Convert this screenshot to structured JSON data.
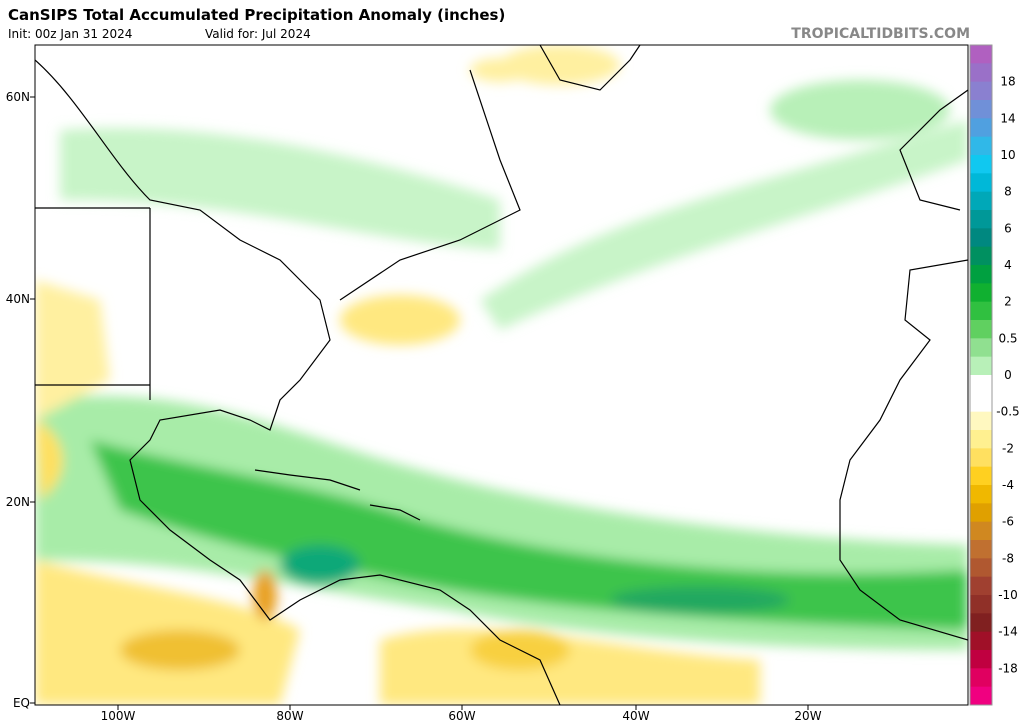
{
  "header": {
    "title": "CanSIPS Total Accumulated Precipitation Anomaly (inches)",
    "init": "Init: 00z Jan 31 2024",
    "valid": "Valid for: Jul 2024",
    "site": "TROPICALTIDBITS.COM"
  },
  "map": {
    "lat_labels": [
      "60N",
      "40N",
      "20N",
      "EQ"
    ],
    "lon_labels": [
      "100W",
      "80W",
      "60W",
      "40W",
      "20W"
    ]
  },
  "colorbar": {
    "labels": [
      "18",
      "14",
      "10",
      "8",
      "6",
      "4",
      "2",
      "0.5",
      "0",
      "-0.5",
      "-2",
      "-4",
      "-6",
      "-8",
      "-10",
      "-14",
      "-18"
    ],
    "colors": [
      "#b060c0",
      "#9a70c8",
      "#8a80d0",
      "#7090d8",
      "#50a0e0",
      "#30b8e8",
      "#10c8f0",
      "#00b8d8",
      "#00a8b8",
      "#009898",
      "#008880",
      "#009060",
      "#00a040",
      "#10b030",
      "#30c040",
      "#60d060",
      "#90e090",
      "#b8f0b8",
      "#ffffff",
      "#ffffff",
      "#fff8c0",
      "#fff090",
      "#ffe060",
      "#ffd020",
      "#f0b800",
      "#e0a000",
      "#d08820",
      "#c07030",
      "#b05830",
      "#a04030",
      "#903028",
      "#802020",
      "#a01028",
      "#c00040",
      "#e00060",
      "#f00080"
    ]
  }
}
